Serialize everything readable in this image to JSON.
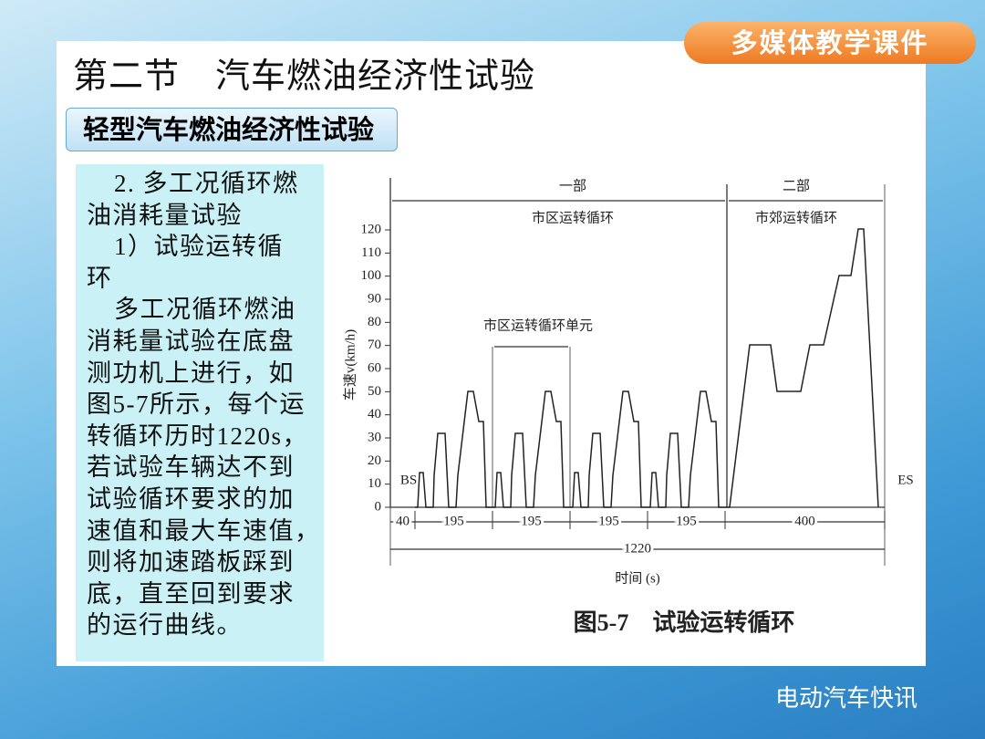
{
  "header": {
    "title": "第二节　汽车燃油经济性试验",
    "badge": "多媒体教学课件"
  },
  "section": {
    "title": "轻型汽车燃油经济性试验"
  },
  "body": {
    "lines": [
      "2. 多工况循环燃",
      "油消耗量试验",
      "1）试验运转循",
      "环",
      "多工况循环燃油",
      "消耗量试验在底盘",
      "测功机上进行，如",
      "图5-7所示，每个运",
      "转循环历时1220s，",
      "若试验车辆达不到",
      "试验循环要求的加",
      "速值和最大车速值，",
      "则将加速踏板踩到",
      "底，直至回到要求",
      "的运行曲线。"
    ]
  },
  "figure": {
    "parts": [
      {
        "name": "一部",
        "label": "市区运转循环"
      },
      {
        "name": "二部",
        "label": "市郊运转循环"
      }
    ],
    "unit_label": "市区运转循环单元",
    "y_label": "车速v(km/h)",
    "yticks": [
      0,
      10,
      20,
      30,
      40,
      50,
      60,
      70,
      80,
      90,
      100,
      110,
      120
    ],
    "segments": [
      40,
      195,
      195,
      195,
      195,
      400
    ],
    "total": 1220,
    "x_label": "时间 (s)",
    "start": "BS",
    "end": "ES",
    "caption": "图5-7　试验运转循环"
  },
  "watermark": "电动汽车快讯"
}
